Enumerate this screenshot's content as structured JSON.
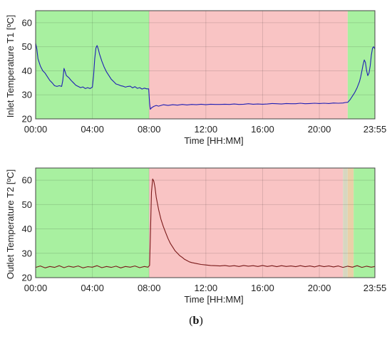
{
  "chart_data": [
    {
      "type": "line",
      "title": "",
      "xlabel": "Time [HH:MM]",
      "ylabel": "Inlet Temperature T1 [ºC]",
      "xlim": [
        0,
        1435
      ],
      "ylim": [
        20,
        65
      ],
      "xticks": [
        0,
        240,
        480,
        720,
        960,
        1200,
        1435
      ],
      "xtick_labels": [
        "00:00",
        "04:00",
        "08:00",
        "12:00",
        "16:00",
        "20:00",
        "23:55"
      ],
      "yticks": [
        20,
        30,
        40,
        50,
        60
      ],
      "ytick_labels": [
        "20",
        "30",
        "40",
        "50",
        "60"
      ],
      "grid": true,
      "line_color": "#1f1fb4",
      "bands": [
        {
          "from": 0,
          "to": 480,
          "color": "#a8f0a0"
        },
        {
          "from": 480,
          "to": 1320,
          "color": "#f9c4c4"
        },
        {
          "from": 1320,
          "to": 1435,
          "color": "#a8f0a0"
        }
      ],
      "series": [
        {
          "x": [
            0,
            5,
            10,
            20,
            30,
            40,
            50,
            60,
            70,
            80,
            90,
            100,
            110,
            115,
            120,
            125,
            130,
            140,
            150,
            160,
            170,
            180,
            190,
            200,
            210,
            220,
            230,
            240,
            245,
            250,
            255,
            260,
            265,
            270,
            280,
            290,
            300,
            310,
            320,
            330,
            340,
            350,
            360,
            370,
            380,
            390,
            400,
            410,
            420,
            430,
            440,
            450,
            460,
            470,
            478,
            482,
            485,
            490,
            500,
            510,
            520,
            540,
            560,
            580,
            600,
            620,
            640,
            660,
            680,
            700,
            720,
            740,
            760,
            780,
            800,
            820,
            840,
            860,
            880,
            900,
            920,
            940,
            960,
            980,
            1000,
            1020,
            1040,
            1060,
            1080,
            1100,
            1120,
            1140,
            1160,
            1180,
            1200,
            1220,
            1240,
            1260,
            1280,
            1300,
            1310,
            1320,
            1330,
            1340,
            1350,
            1360,
            1370,
            1375,
            1380,
            1385,
            1390,
            1395,
            1400,
            1405,
            1410,
            1415,
            1420,
            1425,
            1430,
            1435
          ],
          "y": [
            51.5,
            49,
            45,
            42,
            40,
            39,
            37.5,
            36,
            35,
            33.8,
            33.5,
            33.8,
            33.5,
            36,
            41,
            39.5,
            38,
            37.2,
            36,
            35,
            34,
            33.5,
            33,
            33.3,
            32.6,
            33,
            32.6,
            33.2,
            38,
            45,
            49.5,
            50.5,
            49,
            47,
            44,
            41.5,
            39.5,
            38,
            36.5,
            35.5,
            34.5,
            34.2,
            33.8,
            33.6,
            33.2,
            33.5,
            33.6,
            32.9,
            33.4,
            32.7,
            33,
            32.4,
            32.8,
            32.5,
            32.5,
            26.5,
            24,
            24.6,
            25.2,
            25.6,
            25.3,
            25.9,
            25.6,
            25.9,
            25.7,
            26,
            25.8,
            26,
            25.9,
            26.1,
            25.9,
            26.1,
            26,
            26,
            26.1,
            26,
            26.2,
            26,
            26.1,
            26.3,
            26.1,
            26.2,
            26.1,
            26.2,
            26.4,
            26.3,
            26.2,
            26.4,
            26.3,
            26.3,
            26.5,
            26.3,
            26.4,
            26.5,
            26.4,
            26.5,
            26.4,
            26.6,
            26.5,
            26.6,
            26.8,
            26.9,
            28,
            29.5,
            31,
            33,
            35.5,
            37.5,
            40,
            42.5,
            44.5,
            43.5,
            40,
            38,
            39,
            42,
            46.5,
            49.5,
            50,
            49
          ]
        }
      ]
    },
    {
      "type": "line",
      "title": "",
      "xlabel": "Time [HH:MM]",
      "ylabel": "Outlet Temperature T2 [ºC]",
      "xlim": [
        0,
        1435
      ],
      "ylim": [
        20,
        65
      ],
      "xticks": [
        0,
        240,
        480,
        720,
        960,
        1200,
        1435
      ],
      "xtick_labels": [
        "00:00",
        "04:00",
        "08:00",
        "12:00",
        "16:00",
        "20:00",
        "23:55"
      ],
      "yticks": [
        20,
        30,
        40,
        50,
        60
      ],
      "ytick_labels": [
        "20",
        "30",
        "40",
        "50",
        "60"
      ],
      "grid": true,
      "line_color": "#7a1a1a",
      "bands": [
        {
          "from": 0,
          "to": 480,
          "color": "#a8f0a0"
        },
        {
          "from": 480,
          "to": 1300,
          "color": "#f9c4c4"
        },
        {
          "from": 1300,
          "to": 1320,
          "color": "#d7d7c0"
        },
        {
          "from": 1320,
          "to": 1345,
          "color": "#ead0a8"
        },
        {
          "from": 1345,
          "to": 1435,
          "color": "#a8f0a0"
        }
      ],
      "series": [
        {
          "x": [
            0,
            20,
            40,
            60,
            80,
            100,
            120,
            140,
            160,
            180,
            200,
            220,
            240,
            260,
            280,
            300,
            320,
            340,
            360,
            380,
            400,
            420,
            440,
            460,
            475,
            482,
            485,
            490,
            495,
            500,
            505,
            510,
            520,
            530,
            540,
            550,
            560,
            570,
            580,
            590,
            600,
            610,
            620,
            630,
            640,
            650,
            660,
            680,
            700,
            720,
            740,
            760,
            780,
            800,
            820,
            840,
            860,
            880,
            900,
            920,
            940,
            960,
            980,
            1000,
            1020,
            1040,
            1060,
            1080,
            1100,
            1120,
            1140,
            1160,
            1180,
            1200,
            1220,
            1240,
            1260,
            1280,
            1300,
            1320,
            1340,
            1360,
            1380,
            1400,
            1420,
            1435
          ],
          "y": [
            24.2,
            24.8,
            24.0,
            24.6,
            24.2,
            24.9,
            24.1,
            24.7,
            24.3,
            24.8,
            24.0,
            24.5,
            24.3,
            24.9,
            24.1,
            24.6,
            24.2,
            24.7,
            24.0,
            24.6,
            24.3,
            24.8,
            24.1,
            24.6,
            24.3,
            25,
            36,
            55,
            60.5,
            59.5,
            57,
            53,
            48,
            44,
            41,
            38.5,
            36,
            34,
            32.5,
            31,
            30,
            29,
            28.3,
            27.5,
            27,
            26.5,
            26.2,
            25.8,
            25.4,
            25.2,
            25.0,
            24.9,
            24.8,
            25.0,
            24.7,
            24.9,
            24.6,
            25.0,
            24.7,
            24.9,
            24.6,
            25.0,
            24.6,
            24.9,
            24.5,
            24.9,
            24.6,
            24.8,
            24.5,
            24.9,
            24.5,
            24.8,
            24.4,
            24.9,
            24.5,
            24.8,
            24.4,
            24.8,
            24.2,
            24.7,
            24.3,
            24.9,
            24.2,
            24.7,
            24.3,
            24.6
          ]
        }
      ]
    }
  ],
  "caption": {
    "open": "(",
    "letter": "b",
    "close": ")"
  }
}
